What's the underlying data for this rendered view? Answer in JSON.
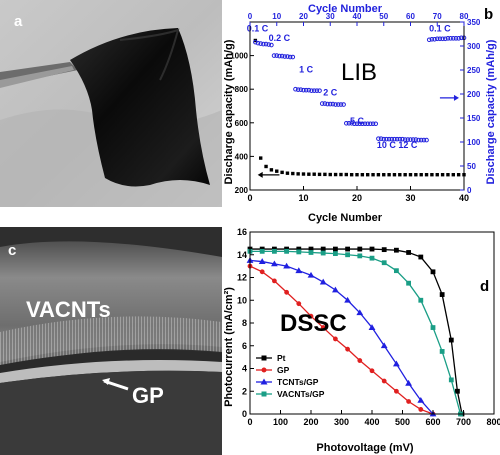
{
  "panels": {
    "a": {
      "label": "a"
    },
    "b": {
      "label": "b",
      "overlay": "LIB"
    },
    "c": {
      "label": "c",
      "layer_top": "VACNTs",
      "layer_bottom": "GP"
    },
    "d": {
      "label": "d",
      "overlay": "DSSC"
    }
  },
  "chart_data": [
    {
      "panel": "b",
      "type": "scatter",
      "title": "",
      "xlabel": "Cycle Number",
      "x2label": "Cycle Number",
      "ylabel": "Discharge capacity (mAh/g)",
      "y2label": "Discharge capacity (mAh/g)",
      "xlim": [
        0,
        40
      ],
      "x2lim": [
        0,
        80
      ],
      "ylim": [
        200,
        1200
      ],
      "y2lim": [
        0,
        350
      ],
      "xticks": [
        "0",
        "10",
        "20",
        "30",
        "40"
      ],
      "x2ticks": [
        "0",
        "10",
        "20",
        "30",
        "40",
        "50",
        "60",
        "70",
        "80"
      ],
      "yticks": [
        "200",
        "400",
        "600",
        "800",
        "1000"
      ],
      "y2ticks": [
        "0",
        "50",
        "100",
        "150",
        "200",
        "250",
        "300",
        "350"
      ],
      "rate_labels": [
        {
          "text": "0.1 C",
          "x": 2.8,
          "y": 330
        },
        {
          "text": "0.2 C",
          "x": 11,
          "y": 310
        },
        {
          "text": "1 C",
          "x": 21,
          "y": 245
        },
        {
          "text": "2 C",
          "x": 30,
          "y": 197
        },
        {
          "text": "5 C",
          "x": 40,
          "y": 137
        },
        {
          "text": "10 C",
          "x": 51,
          "y": 87
        },
        {
          "text": "12 C",
          "x": 59,
          "y": 87
        },
        {
          "text": "0.1 C",
          "x": 71,
          "y": 330
        }
      ],
      "series": [
        {
          "axis": "left",
          "color": "#000000",
          "marker": "square",
          "x": [
            1,
            2,
            3,
            4,
            5,
            6,
            7,
            8,
            9,
            10,
            11,
            12,
            13,
            14,
            15,
            16,
            17,
            18,
            19,
            20,
            21,
            22,
            23,
            24,
            25,
            26,
            27,
            28,
            29,
            30,
            31,
            32,
            33,
            34,
            35,
            36,
            37,
            38,
            39,
            40
          ],
          "y": [
            1090,
            390,
            340,
            320,
            312,
            305,
            300,
            298,
            296,
            295,
            294,
            294,
            293,
            293,
            292,
            292,
            292,
            292,
            291,
            291,
            291,
            291,
            291,
            291,
            291,
            291,
            291,
            291,
            291,
            291,
            291,
            291,
            291,
            291,
            291,
            291,
            291,
            291,
            291,
            291
          ]
        },
        {
          "axis": "right",
          "color": "#2222dd",
          "marker": "circle",
          "x": [
            2,
            3,
            4,
            5,
            6,
            7,
            8,
            9,
            10,
            11,
            12,
            13,
            14,
            15,
            16,
            17,
            18,
            19,
            20,
            21,
            22,
            23,
            24,
            25,
            26,
            27,
            28,
            29,
            30,
            31,
            32,
            33,
            34,
            35,
            36,
            37,
            38,
            39,
            40,
            41,
            42,
            43,
            44,
            45,
            46,
            47,
            48,
            49,
            50,
            51,
            52,
            53,
            54,
            55,
            56,
            57,
            58,
            59,
            60,
            61,
            62,
            63,
            64,
            65,
            66,
            67,
            68,
            69,
            70,
            71,
            72,
            73,
            74,
            75,
            76,
            77,
            78,
            79,
            80
          ],
          "y": [
            308,
            306,
            305,
            304,
            304,
            303,
            302,
            280,
            280,
            279,
            279,
            278,
            278,
            277,
            277,
            210,
            209,
            209,
            208,
            208,
            208,
            207,
            207,
            207,
            207,
            180,
            180,
            179,
            179,
            179,
            178,
            178,
            178,
            178,
            139,
            139,
            139,
            138,
            138,
            138,
            138,
            138,
            138,
            138,
            138,
            138,
            107,
            107,
            106,
            106,
            106,
            106,
            106,
            106,
            106,
            106,
            105,
            105,
            105,
            105,
            105,
            104,
            104,
            104,
            104,
            313,
            314,
            314,
            315,
            315,
            315,
            315,
            316,
            316,
            316,
            316,
            316,
            317,
            317
          ]
        }
      ]
    },
    {
      "panel": "d",
      "type": "line",
      "title": "",
      "xlabel": "Photovoltage (mV)",
      "ylabel": "Photocurrent (mA/cm²)",
      "xlim": [
        0,
        800
      ],
      "ylim": [
        0,
        16
      ],
      "xticks": [
        "0",
        "100",
        "200",
        "300",
        "400",
        "500",
        "600",
        "700",
        "800"
      ],
      "yticks": [
        "0",
        "2",
        "4",
        "6",
        "8",
        "10",
        "12",
        "14",
        "16"
      ],
      "legend_position": "bottom-left",
      "series": [
        {
          "name": "Pt",
          "color": "#000000",
          "marker": "square",
          "x": [
            0,
            40,
            80,
            120,
            160,
            200,
            240,
            280,
            320,
            360,
            400,
            440,
            480,
            520,
            560,
            600,
            630,
            660,
            680,
            695
          ],
          "y": [
            14.5,
            14.5,
            14.5,
            14.5,
            14.5,
            14.5,
            14.5,
            14.5,
            14.5,
            14.5,
            14.5,
            14.45,
            14.4,
            14.2,
            13.8,
            12.5,
            10.5,
            6.5,
            2.0,
            0
          ]
        },
        {
          "name": "GP",
          "color": "#e02020",
          "marker": "circle",
          "x": [
            0,
            40,
            80,
            120,
            160,
            200,
            240,
            280,
            320,
            360,
            400,
            440,
            480,
            520,
            560,
            600
          ],
          "y": [
            13.0,
            12.5,
            11.7,
            10.7,
            9.7,
            8.6,
            7.6,
            6.6,
            5.7,
            4.7,
            3.8,
            2.9,
            2.0,
            1.1,
            0.4,
            0
          ]
        },
        {
          "name": "TCNTs/GP",
          "color": "#2020e0",
          "marker": "triangle",
          "x": [
            0,
            40,
            80,
            120,
            160,
            200,
            240,
            280,
            320,
            360,
            400,
            440,
            480,
            520,
            560,
            600
          ],
          "y": [
            13.5,
            13.4,
            13.2,
            13.0,
            12.6,
            12.2,
            11.6,
            10.9,
            10.0,
            8.9,
            7.6,
            6.0,
            4.4,
            2.7,
            1.2,
            0
          ]
        },
        {
          "name": "VACNTs/GP",
          "color": "#1a9e86",
          "marker": "square",
          "x": [
            0,
            40,
            80,
            120,
            160,
            200,
            240,
            280,
            320,
            360,
            400,
            440,
            480,
            520,
            560,
            600,
            630,
            660,
            690
          ],
          "y": [
            14.3,
            14.3,
            14.3,
            14.3,
            14.25,
            14.2,
            14.15,
            14.1,
            14.0,
            13.9,
            13.7,
            13.3,
            12.6,
            11.5,
            10.0,
            7.6,
            5.5,
            3.0,
            0
          ]
        }
      ]
    }
  ]
}
